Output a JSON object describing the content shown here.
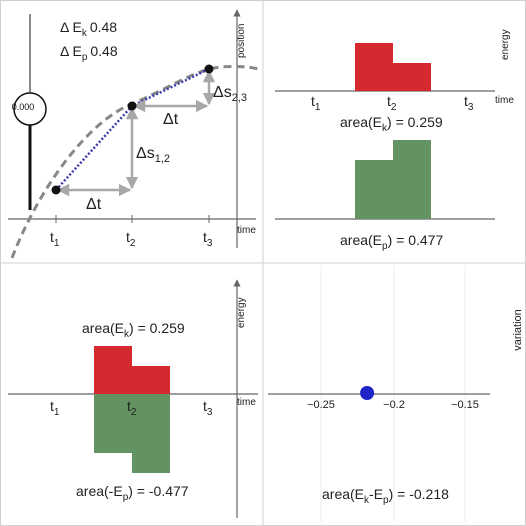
{
  "readouts": {
    "delta_ek_label": "Δ E",
    "delta_ek_sub": "k",
    "delta_ek_value": "0.48",
    "delta_ep_label": "Δ E",
    "delta_ep_sub": "p",
    "delta_ep_value": "0.48",
    "gauge_value": "0.000"
  },
  "top_left": {
    "y_axis_label": "position",
    "x_axis_label": "time",
    "ticks": [
      "t",
      "t",
      "t"
    ],
    "tick_subs": [
      "1",
      "2",
      "3"
    ],
    "dt_label_1": "Δt",
    "dt_label_2": "Δt",
    "ds12_label": "Δs",
    "ds12_sub": "1,2",
    "ds23_label": "Δs",
    "ds23_sub": "2,3"
  },
  "top_right": {
    "y_axis_label": "energy",
    "x_axis_label": "time",
    "ticks": [
      "t",
      "t",
      "t"
    ],
    "tick_subs": [
      "1",
      "2",
      "3"
    ],
    "area_ek_prefix": "area(E",
    "area_ek_sub": "k",
    "area_ek_suffix": ") = 0.259",
    "area_ep_prefix": "area(E",
    "area_ep_sub": "p",
    "area_ep_suffix": ") = 0.477"
  },
  "bottom_left": {
    "y_axis_label": "energy",
    "x_axis_label": "time",
    "ticks": [
      "t",
      "t",
      "t"
    ],
    "tick_subs": [
      "1",
      "2",
      "3"
    ],
    "area_ek_prefix": "area(E",
    "area_ek_sub": "k",
    "area_ek_suffix": ") = 0.259",
    "area_ep_prefix": "area(-E",
    "area_ep_sub": "p",
    "area_ep_suffix": ") = -0.477"
  },
  "bottom_right": {
    "y_axis_label": "variation",
    "tick_labels": [
      "−0.25",
      "−0.2",
      "−0.15"
    ],
    "variation_prefix": "area(E",
    "variation_sub1": "k",
    "variation_mid": "-E",
    "variation_sub2": "p",
    "variation_suffix": ") = -0.218",
    "variation_value": -0.218,
    "x_range": [
      -0.25,
      -0.15
    ]
  },
  "colors": {
    "kinetic": "#d42a2f",
    "kinetic_text": "#c4282e",
    "potential": "#639363",
    "potential_text": "#5c8a5c",
    "variation_text": "#2222aa",
    "variation_dot": "#1f24c9",
    "path_dotted": "#3a3ab0",
    "arrow_gray": "#a8a8a8",
    "dashed_curve": "#888888"
  }
}
